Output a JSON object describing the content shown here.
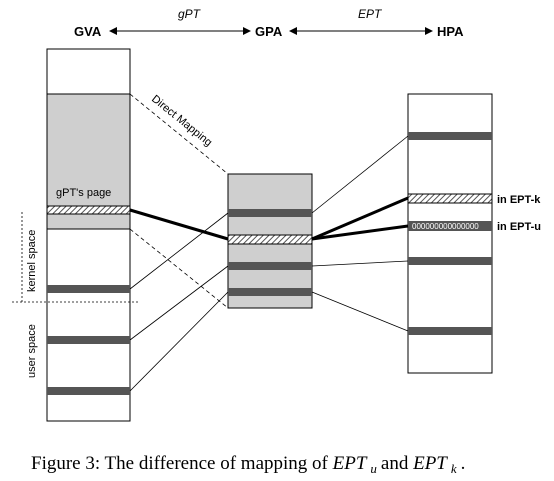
{
  "headers": {
    "gva": "GVA",
    "gpa": "GPA",
    "hpa": "HPA",
    "gpt": "gPT",
    "ept": "EPT"
  },
  "labels": {
    "direct_mapping": "Direct Mapping",
    "gpt_page": "gPT's page",
    "kernel_space": "kernel space",
    "user_space": "user space",
    "in_ept_k": "in EPT-k",
    "in_ept_u": "in EPT-u",
    "zeros": "000000000000000"
  },
  "caption": {
    "prefix": "Figure 3: The difference of mapping of ",
    "ept_u": "EPT",
    "ept_u_sub": "u",
    "and": " and ",
    "ept_k": "EPT",
    "ept_k_sub": "k",
    "suffix": "."
  },
  "colors": {
    "dark_bar": "#555555",
    "light_fill": "#cfcfcf",
    "line": "#000000"
  }
}
